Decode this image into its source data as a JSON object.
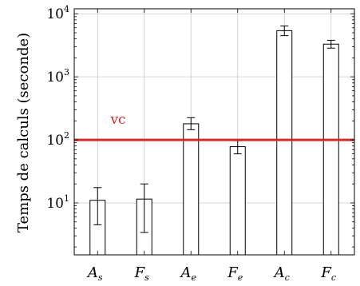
{
  "chart_data": {
    "type": "bar",
    "ylabel": "Temps de calculs (seconde)",
    "xlabel": "",
    "yscale": "log",
    "ylim": [
      1.5,
      12000
    ],
    "grid": true,
    "categories": [
      {
        "main": "A",
        "sub": "s"
      },
      {
        "main": "F",
        "sub": "s"
      },
      {
        "main": "A",
        "sub": "e"
      },
      {
        "main": "F",
        "sub": "e"
      },
      {
        "main": "A",
        "sub": "c"
      },
      {
        "main": "F",
        "sub": "c"
      }
    ],
    "values": [
      11,
      11.5,
      180,
      78,
      5400,
      3300
    ],
    "error_low": [
      4.5,
      3.4,
      145,
      60,
      4500,
      2850
    ],
    "error_high": [
      17.5,
      20,
      225,
      97,
      6400,
      3800
    ],
    "yticks": [
      {
        "base": "10",
        "exp": "1",
        "value": 10
      },
      {
        "base": "10",
        "exp": "2",
        "value": 100
      },
      {
        "base": "10",
        "exp": "3",
        "value": 1000
      },
      {
        "base": "10",
        "exp": "4",
        "value": 10000
      }
    ],
    "reference_line": {
      "value": 100,
      "label": "vc",
      "color": "#d42a2a"
    },
    "bar_color": "#ffffff",
    "edge_color": "#000000"
  }
}
